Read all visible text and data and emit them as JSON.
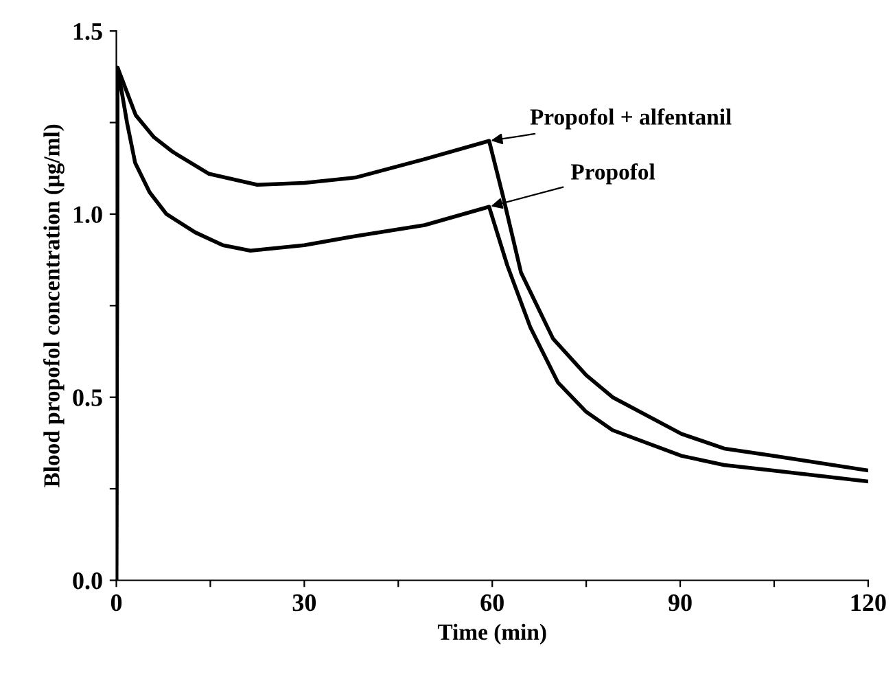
{
  "chart_data": {
    "type": "line",
    "xlabel": "Time (min)",
    "ylabel": "Blood propofol concentration (μg/ml)",
    "xlim": [
      0,
      120
    ],
    "ylim": [
      0,
      1.5
    ],
    "xticks": [
      0,
      {
        "value": 15,
        "label": null
      },
      30,
      {
        "value": 45,
        "label": null
      },
      60,
      {
        "value": 75,
        "label": null
      },
      90,
      {
        "value": 105,
        "label": null
      },
      120
    ],
    "yticks": [
      {
        "value": 0,
        "label": "0.0"
      },
      {
        "value": 0.25,
        "label": null
      },
      {
        "value": 0.5,
        "label": "0.5"
      },
      {
        "value": 0.75,
        "label": null
      },
      {
        "value": 1.0,
        "label": "1.0"
      },
      {
        "value": 1.25,
        "label": null
      },
      {
        "value": 1.5,
        "label": "1.5"
      }
    ],
    "annotations": [
      {
        "text": "Propofol + alfentanil",
        "x": 59.5,
        "y": 1.2
      },
      {
        "text": "Propofol",
        "x": 59.5,
        "y": 1.02
      }
    ],
    "grid": false,
    "legend": false,
    "marker": "none",
    "line_style": "solid",
    "series": [
      {
        "color": "#000000",
        "x": [
          0,
          0.2,
          3.1,
          6,
          9,
          14.8,
          22.5,
          30,
          38.2,
          49.2,
          59.5,
          61.7,
          64.6,
          69.7,
          75,
          79.2,
          90.2,
          97,
          104.8,
          120
        ],
        "values": [
          0,
          1.4,
          1.27,
          1.21,
          1.17,
          1.11,
          1.08,
          1.085,
          1.1,
          1.15,
          1.2,
          1.05,
          0.84,
          0.66,
          0.56,
          0.5,
          0.4,
          0.36,
          0.34,
          0.3
        ]
      },
      {
        "color": "#000000",
        "x": [
          0,
          0.2,
          1.7,
          3,
          5.3,
          8,
          12.6,
          17,
          21.4,
          30,
          38.2,
          49.2,
          59.5,
          62.4,
          66.1,
          70.5,
          75,
          79.2,
          90.2,
          97,
          104.8,
          120
        ],
        "values": [
          0,
          1.4,
          1.25,
          1.14,
          1.06,
          1.0,
          0.95,
          0.915,
          0.9,
          0.915,
          0.94,
          0.97,
          1.02,
          0.86,
          0.69,
          0.54,
          0.46,
          0.41,
          0.34,
          0.315,
          0.3,
          0.27
        ]
      }
    ]
  }
}
